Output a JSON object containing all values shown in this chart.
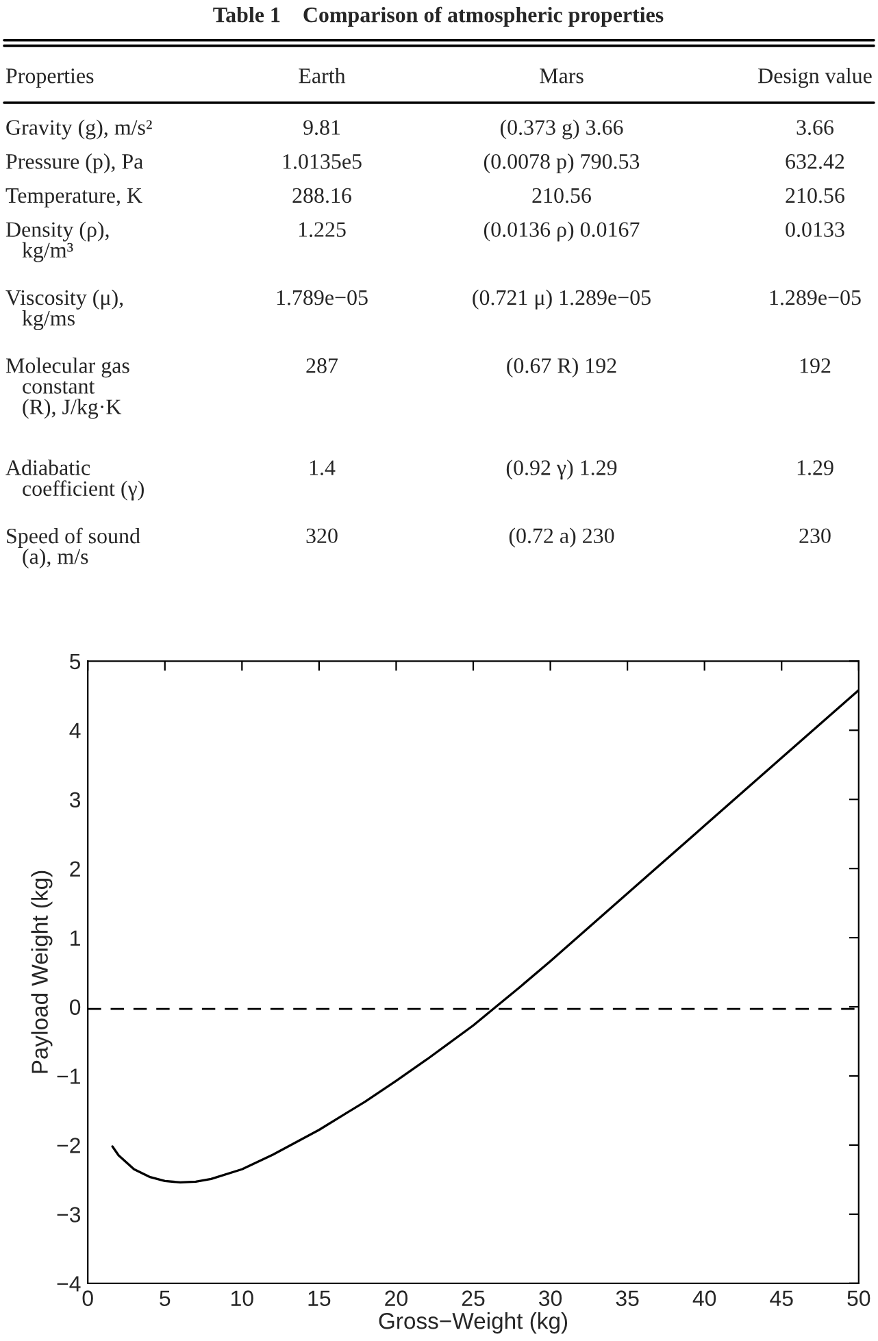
{
  "chart_data": [
    {
      "type": "other",
      "title": "Table 1    Comparison of atmospheric properties",
      "annotations": [
        "Properties",
        "Earth",
        "Mars",
        "Design value",
        "Gravity (g), m/s²",
        "9.81",
        "(0.373 g) 3.66",
        "3.66",
        "Pressure (p), Pa",
        "1.0135e5",
        "(0.0078 p) 790.53",
        "632.42",
        "Temperature, K",
        "288.16",
        "210.56",
        "210.56",
        "Density (ρ),\n   kg/m³",
        "1.225",
        "(0.0136 ρ) 0.0167",
        "0.0133",
        "Viscosity (μ),\n   kg/ms",
        "1.789e−05",
        "(0.721 μ) 1.289e−05",
        "1.289e−05",
        "Molecular gas\n   constant\n   (R), J/kg·K",
        "287",
        "(0.67 R) 192",
        "192",
        "Adiabatic\n   coefficient (γ)",
        "1.4",
        "(0.92 γ) 1.29",
        "1.29",
        "Speed of sound\n   (a), m/s",
        "320",
        "(0.72 a) 230",
        "230"
      ]
    },
    {
      "type": "line",
      "xlabel": "Gross−Weight (kg)",
      "ylabel": "Payload Weight (kg)",
      "xlim": [
        0,
        50
      ],
      "ylim": [
        -4,
        5
      ],
      "xticks": [
        0,
        5,
        10,
        15,
        20,
        25,
        30,
        35,
        40,
        45,
        50
      ],
      "yticks": [
        {
          "value": -4,
          "label": "−4"
        },
        {
          "value": -3,
          "label": "−3"
        },
        {
          "value": -2,
          "label": "−2"
        },
        {
          "value": -1,
          "label": "−1"
        },
        0,
        1,
        2,
        3,
        4,
        5
      ],
      "grid": false,
      "legend": false,
      "line_style": "solid",
      "marker": "none",
      "series": [
        {
          "color": "#000000",
          "x": [
            1.6,
            2,
            3,
            4,
            5,
            6,
            7,
            8,
            10,
            12,
            15,
            18,
            20,
            22,
            25,
            26.2,
            28,
            30,
            35,
            40,
            45,
            50
          ],
          "values": [
            -2.02,
            -2.15,
            -2.35,
            -2.46,
            -2.52,
            -2.54,
            -2.53,
            -2.49,
            -2.35,
            -2.14,
            -1.78,
            -1.37,
            -1.07,
            -0.76,
            -0.27,
            -0.05,
            0.28,
            0.66,
            1.64,
            2.62,
            3.6,
            4.58
          ]
        }
      ],
      "ref_lines": [
        {
          "axis": "y",
          "value": -0.03,
          "color": "#000000",
          "line_style": "dashed"
        }
      ]
    }
  ]
}
